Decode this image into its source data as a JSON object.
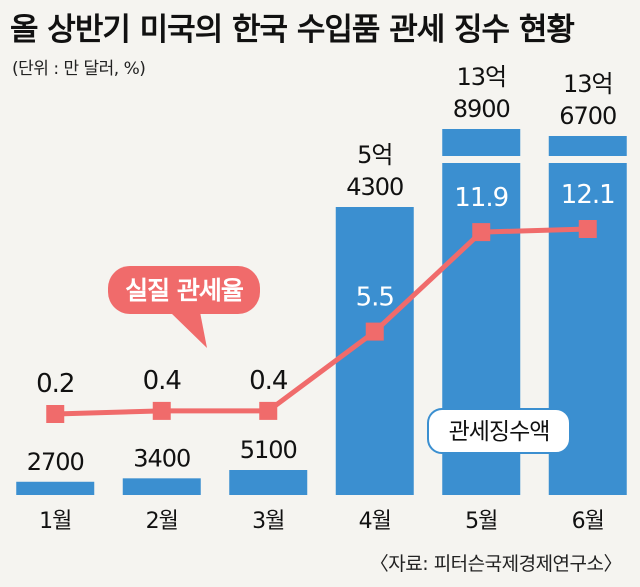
{
  "title": "올 상반기 미국의 한국 수입품 관세 징수 현황",
  "unit_note": "(단위 : 만 달러, %)",
  "source": "〈자료: 피터슨국제경제연구소〉",
  "callout_label": "실질 관세율",
  "legend_label": "관세징수액",
  "chart_data": {
    "type": "bar",
    "categories": [
      "1월",
      "2월",
      "3월",
      "4월",
      "5월",
      "6월"
    ],
    "series": [
      {
        "name": "관세징수액",
        "type": "bar",
        "values": [
          2700,
          3400,
          5100,
          54300,
          138900,
          136700
        ],
        "labels": [
          [
            "2700"
          ],
          [
            "3400"
          ],
          [
            "5100"
          ],
          [
            "5억",
            "4300"
          ],
          [
            "13억",
            "8900"
          ],
          [
            "13억",
            "6700"
          ]
        ],
        "color": "#3b8fd0"
      },
      {
        "name": "실질 관세율",
        "type": "line",
        "values": [
          0.2,
          0.4,
          0.4,
          5.5,
          11.9,
          12.1
        ],
        "labels": [
          "0.2",
          "0.4",
          "0.4",
          "5.5",
          "11.9",
          "12.1"
        ],
        "color": "#f06b6b"
      }
    ],
    "axis_break_on_large_bars": true
  }
}
